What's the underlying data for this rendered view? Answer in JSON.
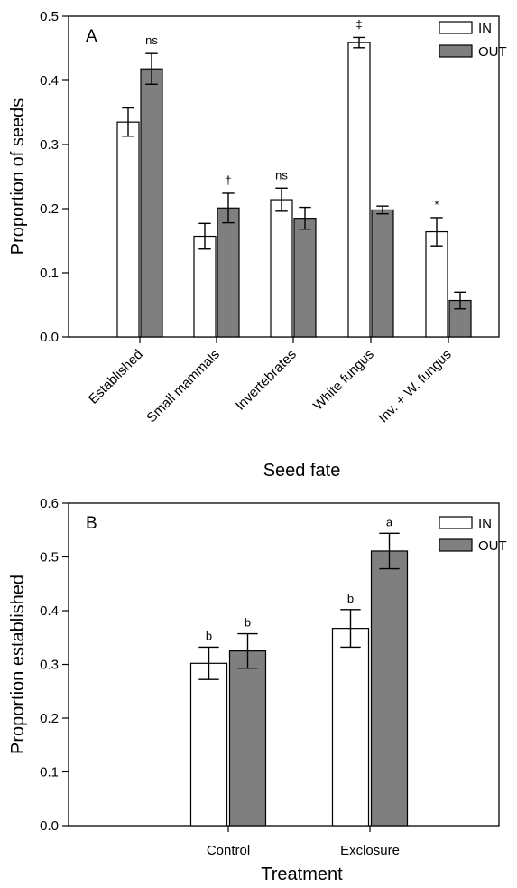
{
  "chart_data": [
    {
      "type": "bar",
      "panel": "A",
      "xlabel": "Seed fate",
      "ylabel": "Proportion of seeds",
      "ylim": [
        0,
        0.5
      ],
      "yticks": [
        "0.0",
        "0.1",
        "0.2",
        "0.3",
        "0.4",
        "0.5"
      ],
      "categories": [
        "Established",
        "Small mammals",
        "Invertebrates",
        "White fungus",
        "Inv. + W. fungus"
      ],
      "series": [
        {
          "name": "IN",
          "color": "#ffffff",
          "values": [
            0.335,
            0.157,
            0.214,
            0.459,
            0.164
          ],
          "errors": [
            0.022,
            0.02,
            0.018,
            0.008,
            0.022
          ]
        },
        {
          "name": "OUT",
          "color": "#7f7f7f",
          "values": [
            0.418,
            0.201,
            0.185,
            0.198,
            0.057
          ],
          "errors": [
            0.024,
            0.023,
            0.017,
            0.006,
            0.013
          ]
        }
      ],
      "annotations": [
        "ns",
        "†",
        "ns",
        "‡",
        "*"
      ],
      "legend": "top-right"
    },
    {
      "type": "bar",
      "panel": "B",
      "xlabel": "Treatment",
      "ylabel": "Proportion established",
      "ylim": [
        0,
        0.6
      ],
      "yticks": [
        "0.0",
        "0.1",
        "0.2",
        "0.3",
        "0.4",
        "0.5",
        "0.6"
      ],
      "categories": [
        "Control",
        "Exclosure"
      ],
      "series": [
        {
          "name": "IN",
          "color": "#ffffff",
          "values": [
            0.302,
            0.367
          ],
          "errors": [
            0.03,
            0.035
          ],
          "labels": [
            "b",
            "b"
          ]
        },
        {
          "name": "OUT",
          "color": "#7f7f7f",
          "values": [
            0.325,
            0.511
          ],
          "errors": [
            0.032,
            0.033
          ],
          "labels": [
            "b",
            "a"
          ]
        }
      ],
      "legend": "top-right"
    }
  ]
}
